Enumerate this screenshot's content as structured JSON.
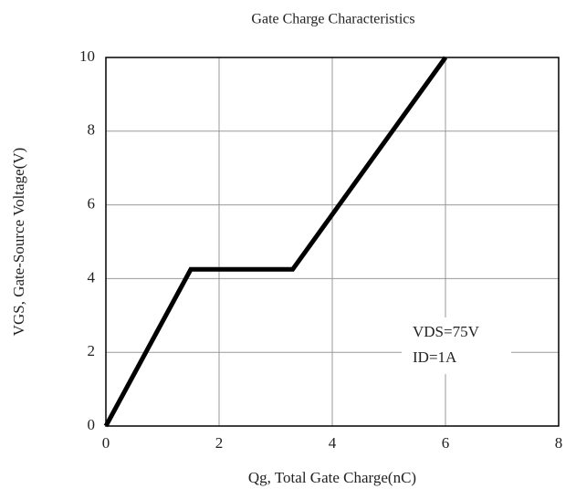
{
  "chart_data": {
    "type": "line",
    "title": "Gate Charge Characteristics",
    "x_label": "Qg, Total Gate Charge(nC)",
    "y_label": "VGS, Gate-Source Voltage(V)",
    "annotations": [
      "VDS=75V",
      "ID=1A"
    ],
    "series": [
      {
        "color": "#000000",
        "x": [
          0,
          1.5,
          3.3,
          6
        ],
        "values": [
          0,
          4.25,
          4.25,
          10
        ]
      }
    ],
    "xlim": [
      0,
      8
    ],
    "xticks": [
      0,
      2,
      4,
      6,
      8
    ],
    "ylim": [
      0,
      10
    ],
    "yticks": [
      0,
      2,
      4,
      6,
      8,
      10
    ],
    "grid": true
  }
}
